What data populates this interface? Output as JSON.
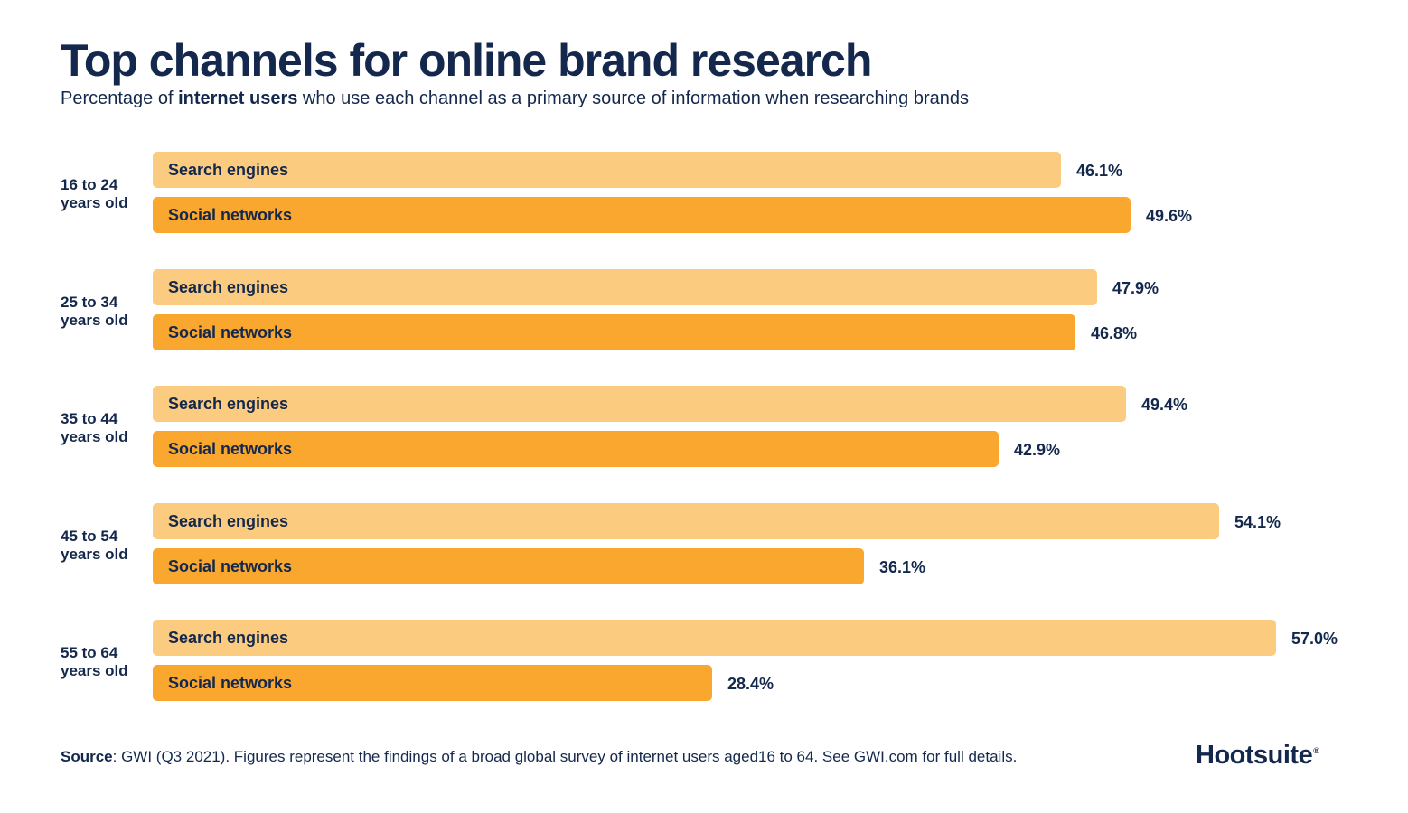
{
  "header": {
    "title": "Top channels for online brand research",
    "subtitle_pre": "Percentage of ",
    "subtitle_bold": "internet users",
    "subtitle_post": " who use each channel as a primary source of information when researching brands"
  },
  "colors": {
    "search": "#fbcb80",
    "social": "#f9a72f",
    "text": "#13284c"
  },
  "chart_data": {
    "type": "bar",
    "orientation": "horizontal",
    "title": "Top channels for online brand research",
    "categories": [
      [
        "16 to 24",
        "years old"
      ],
      [
        "25 to 34",
        "years old"
      ],
      [
        "35 to 44",
        "years old"
      ],
      [
        "45 to 54",
        "years old"
      ],
      [
        "55 to 64",
        "years old"
      ]
    ],
    "series": [
      {
        "name": "Search engines",
        "values": [
          46.1,
          47.9,
          49.4,
          54.1,
          57.0
        ],
        "labels": [
          "46.1%",
          "47.9%",
          "49.4%",
          "54.1%",
          "57.0%"
        ]
      },
      {
        "name": "Social networks",
        "values": [
          49.6,
          46.8,
          42.9,
          36.1,
          28.4
        ],
        "labels": [
          "49.6%",
          "46.8%",
          "42.9%",
          "36.1%",
          "28.4%"
        ]
      }
    ],
    "unit": "%",
    "xlim": [
      0,
      57.0
    ]
  },
  "footer": {
    "source_label": "Source",
    "source_text": ": GWI (Q3 2021). Figures represent the findings of a broad global survey of internet users aged16 to 64. See GWI.com for full details."
  },
  "logo": {
    "text": "Hootsuite",
    "mark": "®"
  }
}
